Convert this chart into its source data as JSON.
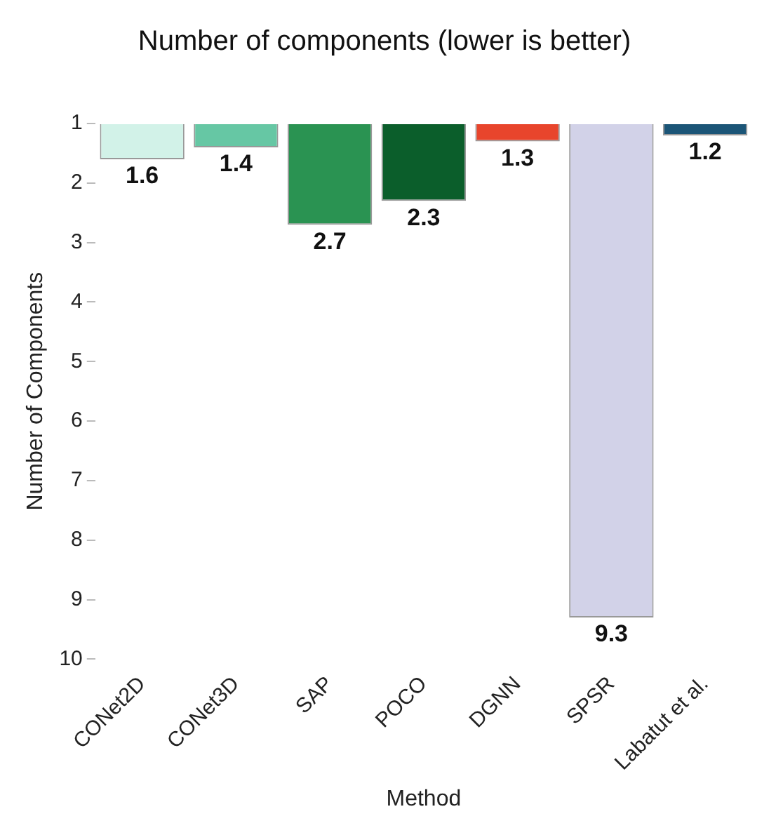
{
  "chart_data": {
    "type": "bar",
    "title": "Number of components (lower is better)",
    "xlabel": "Method",
    "ylabel": "Number of Components",
    "categories": [
      "CONet2D",
      "CONet3D",
      "SAP",
      "POCO",
      "DGNN",
      "SPSR",
      "Labatut et al."
    ],
    "values": [
      1.6,
      1.4,
      2.7,
      2.3,
      1.3,
      9.3,
      1.2
    ],
    "colors": [
      "#d2f2e8",
      "#66c7a4",
      "#2a9352",
      "#0b5e2b",
      "#e8452c",
      "#d2d2e8",
      "#1b5577"
    ],
    "ylim": [
      10,
      1
    ],
    "yticks": [
      1,
      2,
      3,
      4,
      5,
      6,
      7,
      8,
      9,
      10
    ],
    "grid": false,
    "legend": false,
    "data_labels": true
  }
}
